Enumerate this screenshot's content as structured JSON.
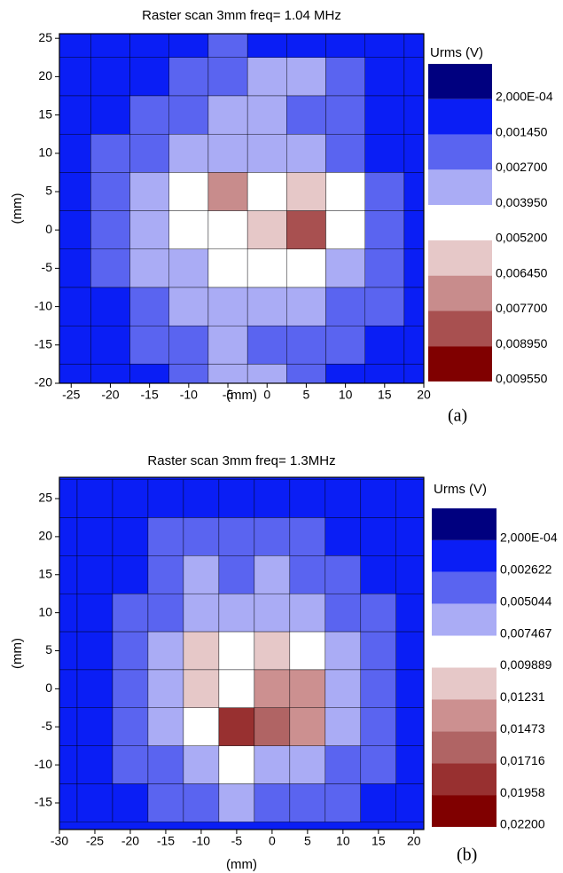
{
  "chart_data": [
    {
      "type": "contour",
      "title": "Raster scan  3mm  freq= 1.04 MHz",
      "x_label": "(mm)",
      "y_label": "(mm)",
      "legend_title": "Urms (V)",
      "panel_label": "(a)",
      "xlim": [
        -26.5,
        20
      ],
      "ylim": [
        -20,
        25.6
      ],
      "xticks": [
        -25,
        -20,
        -15,
        -10,
        -5,
        0,
        5,
        10,
        15,
        20
      ],
      "yticks": [
        -20,
        -15,
        -10,
        -5,
        0,
        5,
        10,
        15,
        20,
        25
      ],
      "levels": [
        {
          "value": 0.0002,
          "label": "2,000E-04"
        },
        {
          "value": 0.00145,
          "label": "0,001450"
        },
        {
          "value": 0.0027,
          "label": "0,002700"
        },
        {
          "value": 0.00395,
          "label": "0,003950"
        },
        {
          "value": 0.0052,
          "label": "0,005200"
        },
        {
          "value": 0.00645,
          "label": "0,006450"
        },
        {
          "value": 0.0077,
          "label": "0,007700"
        },
        {
          "value": 0.00895,
          "label": "0,008950"
        },
        {
          "value": 0.00955,
          "label": "0,009550"
        }
      ],
      "colors": [
        "#00007f",
        "#0a1ef5",
        "#5a64f0",
        "#aaacf5",
        "#ffffff",
        "#e6c8c8",
        "#c88c8c",
        "#a85050",
        "#800000"
      ],
      "x": [
        -25,
        -20,
        -15,
        -10,
        -5,
        0,
        5,
        10,
        15,
        20
      ],
      "y": [
        25,
        20,
        15,
        10,
        5,
        0,
        -5,
        -10,
        -15,
        -20
      ],
      "z": [
        [
          0.0008,
          0.0008,
          0.0008,
          0.0008,
          0.002,
          0.0008,
          0.0008,
          0.0008,
          0.0008,
          0.0008
        ],
        [
          0.0008,
          0.0008,
          0.0008,
          0.002,
          0.002,
          0.0033,
          0.0033,
          0.002,
          0.0008,
          0.0008
        ],
        [
          0.0008,
          0.0008,
          0.002,
          0.002,
          0.0033,
          0.0033,
          0.002,
          0.002,
          0.0008,
          0.0008
        ],
        [
          0.0008,
          0.002,
          0.002,
          0.0033,
          0.0033,
          0.0033,
          0.0033,
          0.002,
          0.0008,
          0.0008
        ],
        [
          0.0008,
          0.002,
          0.0033,
          0.0046,
          0.007,
          0.0046,
          0.0058,
          0.0046,
          0.002,
          0.0008
        ],
        [
          0.0008,
          0.002,
          0.0033,
          0.0046,
          0.0046,
          0.0058,
          0.0083,
          0.0046,
          0.002,
          0.0008
        ],
        [
          0.0008,
          0.002,
          0.0033,
          0.0033,
          0.0046,
          0.0046,
          0.0046,
          0.0033,
          0.002,
          0.0008
        ],
        [
          0.0008,
          0.0008,
          0.002,
          0.0033,
          0.0033,
          0.0033,
          0.0033,
          0.002,
          0.002,
          0.0008
        ],
        [
          0.0008,
          0.0008,
          0.002,
          0.002,
          0.0033,
          0.002,
          0.002,
          0.002,
          0.0008,
          0.0008
        ],
        [
          0.0008,
          0.0008,
          0.0008,
          0.002,
          0.0033,
          0.0033,
          0.002,
          0.0008,
          0.0008,
          0.0008
        ]
      ]
    },
    {
      "type": "contour",
      "title": "Raster scan  3mm  freq= 1.3MHz",
      "x_label": "(mm)",
      "y_label": "(mm)",
      "legend_title": "Urms (V)",
      "panel_label": "(b)",
      "xlim": [
        -30,
        21.4
      ],
      "ylim": [
        -18.5,
        27.8
      ],
      "xticks": [
        -30,
        -25,
        -20,
        -15,
        -10,
        -5,
        0,
        5,
        10,
        15,
        20
      ],
      "yticks": [
        -15,
        -10,
        -5,
        0,
        5,
        10,
        15,
        20,
        25
      ],
      "levels": [
        {
          "value": 0.0002,
          "label": "2,000E-04"
        },
        {
          "value": 0.002622,
          "label": "0,002622"
        },
        {
          "value": 0.005044,
          "label": "0,005044"
        },
        {
          "value": 0.007467,
          "label": "0,007467"
        },
        {
          "value": 0.009889,
          "label": "0,009889"
        },
        {
          "value": 0.01231,
          "label": "0,01231"
        },
        {
          "value": 0.01473,
          "label": "0,01473"
        },
        {
          "value": 0.01716,
          "label": "0,01716"
        },
        {
          "value": 0.01958,
          "label": "0,01958"
        },
        {
          "value": 0.022,
          "label": "0,02200"
        }
      ],
      "colors": [
        "#00007f",
        "#0a1ef5",
        "#5a64f0",
        "#aaacf5",
        "#ffffff",
        "#e6c8c8",
        "#cc9090",
        "#b06464",
        "#983030",
        "#800000"
      ],
      "x": [
        -30,
        -25,
        -20,
        -15,
        -10,
        -5,
        0,
        5,
        10,
        15,
        20
      ],
      "y": [
        25,
        20,
        15,
        10,
        5,
        0,
        -5,
        -10,
        -15
      ],
      "z": [
        [
          0.0014,
          0.0014,
          0.0014,
          0.0014,
          0.0014,
          0.0014,
          0.0014,
          0.0014,
          0.0014,
          0.0014,
          0.0014
        ],
        [
          0.0014,
          0.0014,
          0.0014,
          0.0038,
          0.0038,
          0.0038,
          0.0038,
          0.0038,
          0.0014,
          0.0014,
          0.0014
        ],
        [
          0.0014,
          0.0014,
          0.0014,
          0.0038,
          0.0062,
          0.0038,
          0.0062,
          0.0038,
          0.0038,
          0.0014,
          0.0014
        ],
        [
          0.0014,
          0.0014,
          0.0038,
          0.0038,
          0.0062,
          0.0062,
          0.0062,
          0.0062,
          0.0038,
          0.0038,
          0.0014
        ],
        [
          0.0014,
          0.0014,
          0.0038,
          0.0062,
          0.011,
          0.0087,
          0.011,
          0.0087,
          0.0062,
          0.0038,
          0.0014
        ],
        [
          0.0014,
          0.0014,
          0.0038,
          0.0062,
          0.011,
          0.0087,
          0.0135,
          0.0135,
          0.0062,
          0.0038,
          0.0014
        ],
        [
          0.0014,
          0.0014,
          0.0038,
          0.0062,
          0.0087,
          0.0184,
          0.016,
          0.0135,
          0.0062,
          0.0038,
          0.0014
        ],
        [
          0.0014,
          0.0014,
          0.0038,
          0.0038,
          0.0062,
          0.0087,
          0.0062,
          0.0062,
          0.0038,
          0.0038,
          0.0014
        ],
        [
          0.0014,
          0.0014,
          0.0014,
          0.0038,
          0.0038,
          0.0062,
          0.0038,
          0.0038,
          0.0038,
          0.0014,
          0.0014
        ]
      ]
    }
  ]
}
